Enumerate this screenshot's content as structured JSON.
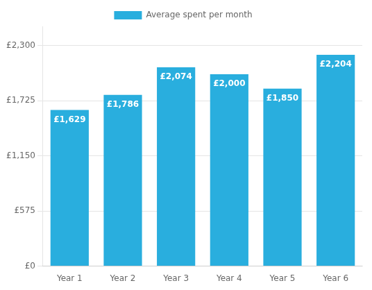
{
  "chart_data": {
    "type": "bar",
    "categories": [
      "Year 1",
      "Year 2",
      "Year 3",
      "Year 4",
      "Year 5",
      "Year 6"
    ],
    "series": [
      {
        "name": "Average spent per month",
        "color": "#29AEDE",
        "values": [
          1629,
          1786,
          2074,
          2000,
          1850,
          2204
        ],
        "value_labels": [
          "£1,629",
          "£1,786",
          "£2,074",
          "£2,000",
          "£1,850",
          "£2,204"
        ]
      }
    ],
    "ylim": [
      0,
      2500
    ],
    "yticks": [
      {
        "value": 0,
        "label": "£0"
      },
      {
        "value": 575,
        "label": "£575"
      },
      {
        "value": 1150,
        "label": "£1,150"
      },
      {
        "value": 1725,
        "label": "£1,725"
      },
      {
        "value": 2300,
        "label": "£2,300"
      }
    ],
    "grid": true,
    "legend": "top",
    "data_labels": true
  }
}
